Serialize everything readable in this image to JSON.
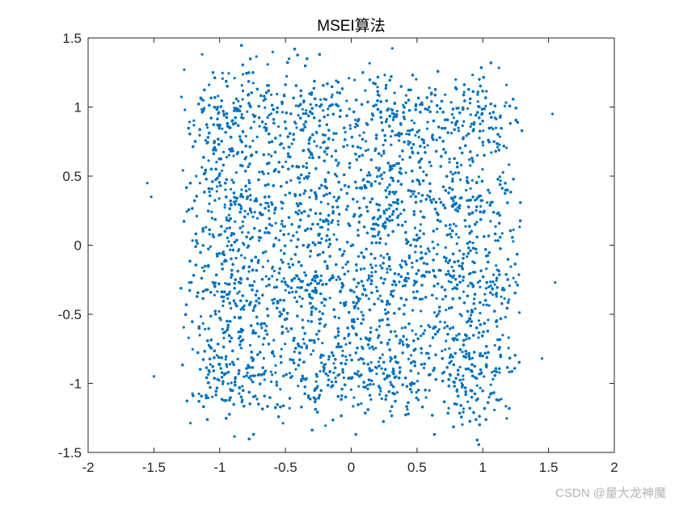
{
  "chart_data": {
    "type": "scatter",
    "title": "MSEI算法",
    "xlim": [
      -2,
      2
    ],
    "ylim": [
      -1.5,
      1.5
    ],
    "xticks": [
      -2,
      -1.5,
      -1,
      -0.5,
      0,
      0.5,
      1,
      1.5,
      2
    ],
    "xtick_labels": [
      "-2",
      "-1.5",
      "-1",
      "-0.5",
      "0",
      "0.5",
      "1",
      "1.5",
      "2"
    ],
    "yticks": [
      -1.5,
      -1,
      -0.5,
      0,
      0.5,
      1,
      1.5
    ],
    "ytick_labels": [
      "-1.5",
      "-1",
      "-0.5",
      "0",
      "0.5",
      "1",
      "1.5"
    ],
    "grid": false,
    "marker_color": "#0072BD",
    "cluster_centers_x": [
      -0.9,
      -0.3,
      0.3,
      0.9
    ],
    "cluster_centers_y": [
      -0.9,
      -0.3,
      0.3,
      0.9
    ],
    "cluster_spread": 0.2,
    "num_points": 16000,
    "outliers": [
      {
        "x": -1.55,
        "y": 0.45
      },
      {
        "x": -1.5,
        "y": -0.95
      },
      {
        "x": 1.55,
        "y": -0.27
      },
      {
        "x": 1.53,
        "y": 0.95
      },
      {
        "x": -1.52,
        "y": 0.35
      },
      {
        "x": 1.45,
        "y": -0.82
      }
    ]
  },
  "watermark": "CSDN @量大龙神魔"
}
